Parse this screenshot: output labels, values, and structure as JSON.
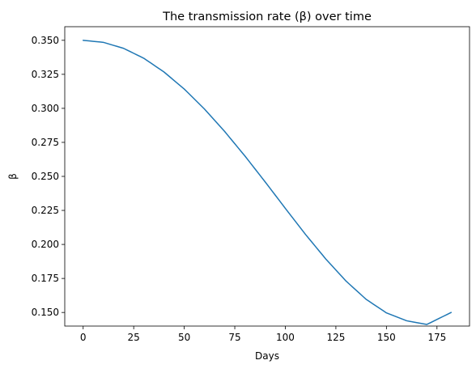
{
  "chart_data": {
    "type": "line",
    "title": "The transmission rate (β) over time",
    "xlabel": "Days",
    "ylabel": "β",
    "xlim": [
      -9.1,
      191.1
    ],
    "ylim": [
      0.14,
      0.36
    ],
    "xticks": [
      0,
      25,
      50,
      75,
      100,
      125,
      150,
      175
    ],
    "xtick_labels": [
      "0",
      "25",
      "50",
      "75",
      "100",
      "125",
      "150",
      "175"
    ],
    "yticks": [
      0.15,
      0.175,
      0.2,
      0.225,
      0.25,
      0.275,
      0.3,
      0.325,
      0.35
    ],
    "ytick_labels": [
      "0.150",
      "0.175",
      "0.200",
      "0.225",
      "0.250",
      "0.275",
      "0.300",
      "0.325",
      "0.350"
    ],
    "grid": false,
    "series": [
      {
        "color": "#1f77b4",
        "x": [
          0,
          10,
          20,
          30,
          40,
          50,
          60,
          70,
          80,
          90,
          100,
          110,
          120,
          130,
          140,
          150,
          160,
          170,
          182
        ],
        "values": [
          0.35,
          0.3485,
          0.3441,
          0.3368,
          0.3267,
          0.3142,
          0.2995,
          0.283,
          0.265,
          0.246,
          0.2265,
          0.2073,
          0.1893,
          0.1731,
          0.1596,
          0.1497,
          0.1439,
          0.1412,
          0.15
        ]
      }
    ]
  }
}
